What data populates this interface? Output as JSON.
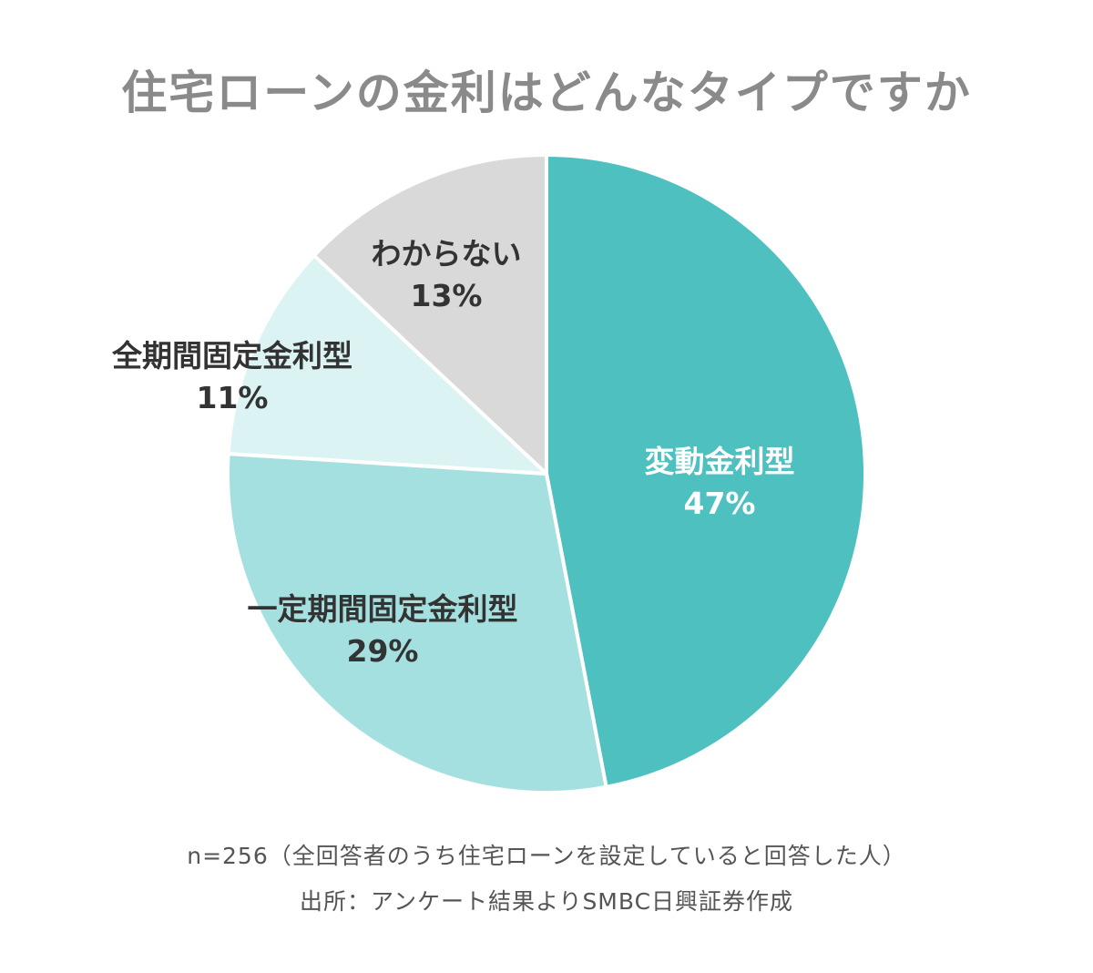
{
  "chart_data": {
    "type": "pie",
    "title": "住宅ローンの金利はどんなタイプですか",
    "slices": [
      {
        "label": "変動金利型",
        "value": 47,
        "value_label": "47%",
        "color": "#4fc0c0",
        "text_color": "#ffffff"
      },
      {
        "label": "一定期間固定金利型",
        "value": 29,
        "value_label": "29%",
        "color": "#a5e0e0",
        "text_color": "#333333"
      },
      {
        "label": "全期間固定金利型",
        "value": 11,
        "value_label": "11%",
        "color": "#dcf3f3",
        "text_color": "#333333"
      },
      {
        "label": "わからない",
        "value": 13,
        "value_label": "13%",
        "color": "#d9d9d9",
        "text_color": "#333333"
      }
    ]
  },
  "notes": {
    "sample": "n=256（全回答者のうち住宅ローンを設定していると回答した人）",
    "source": "出所：アンケート結果よりSMBC日興証券作成"
  }
}
